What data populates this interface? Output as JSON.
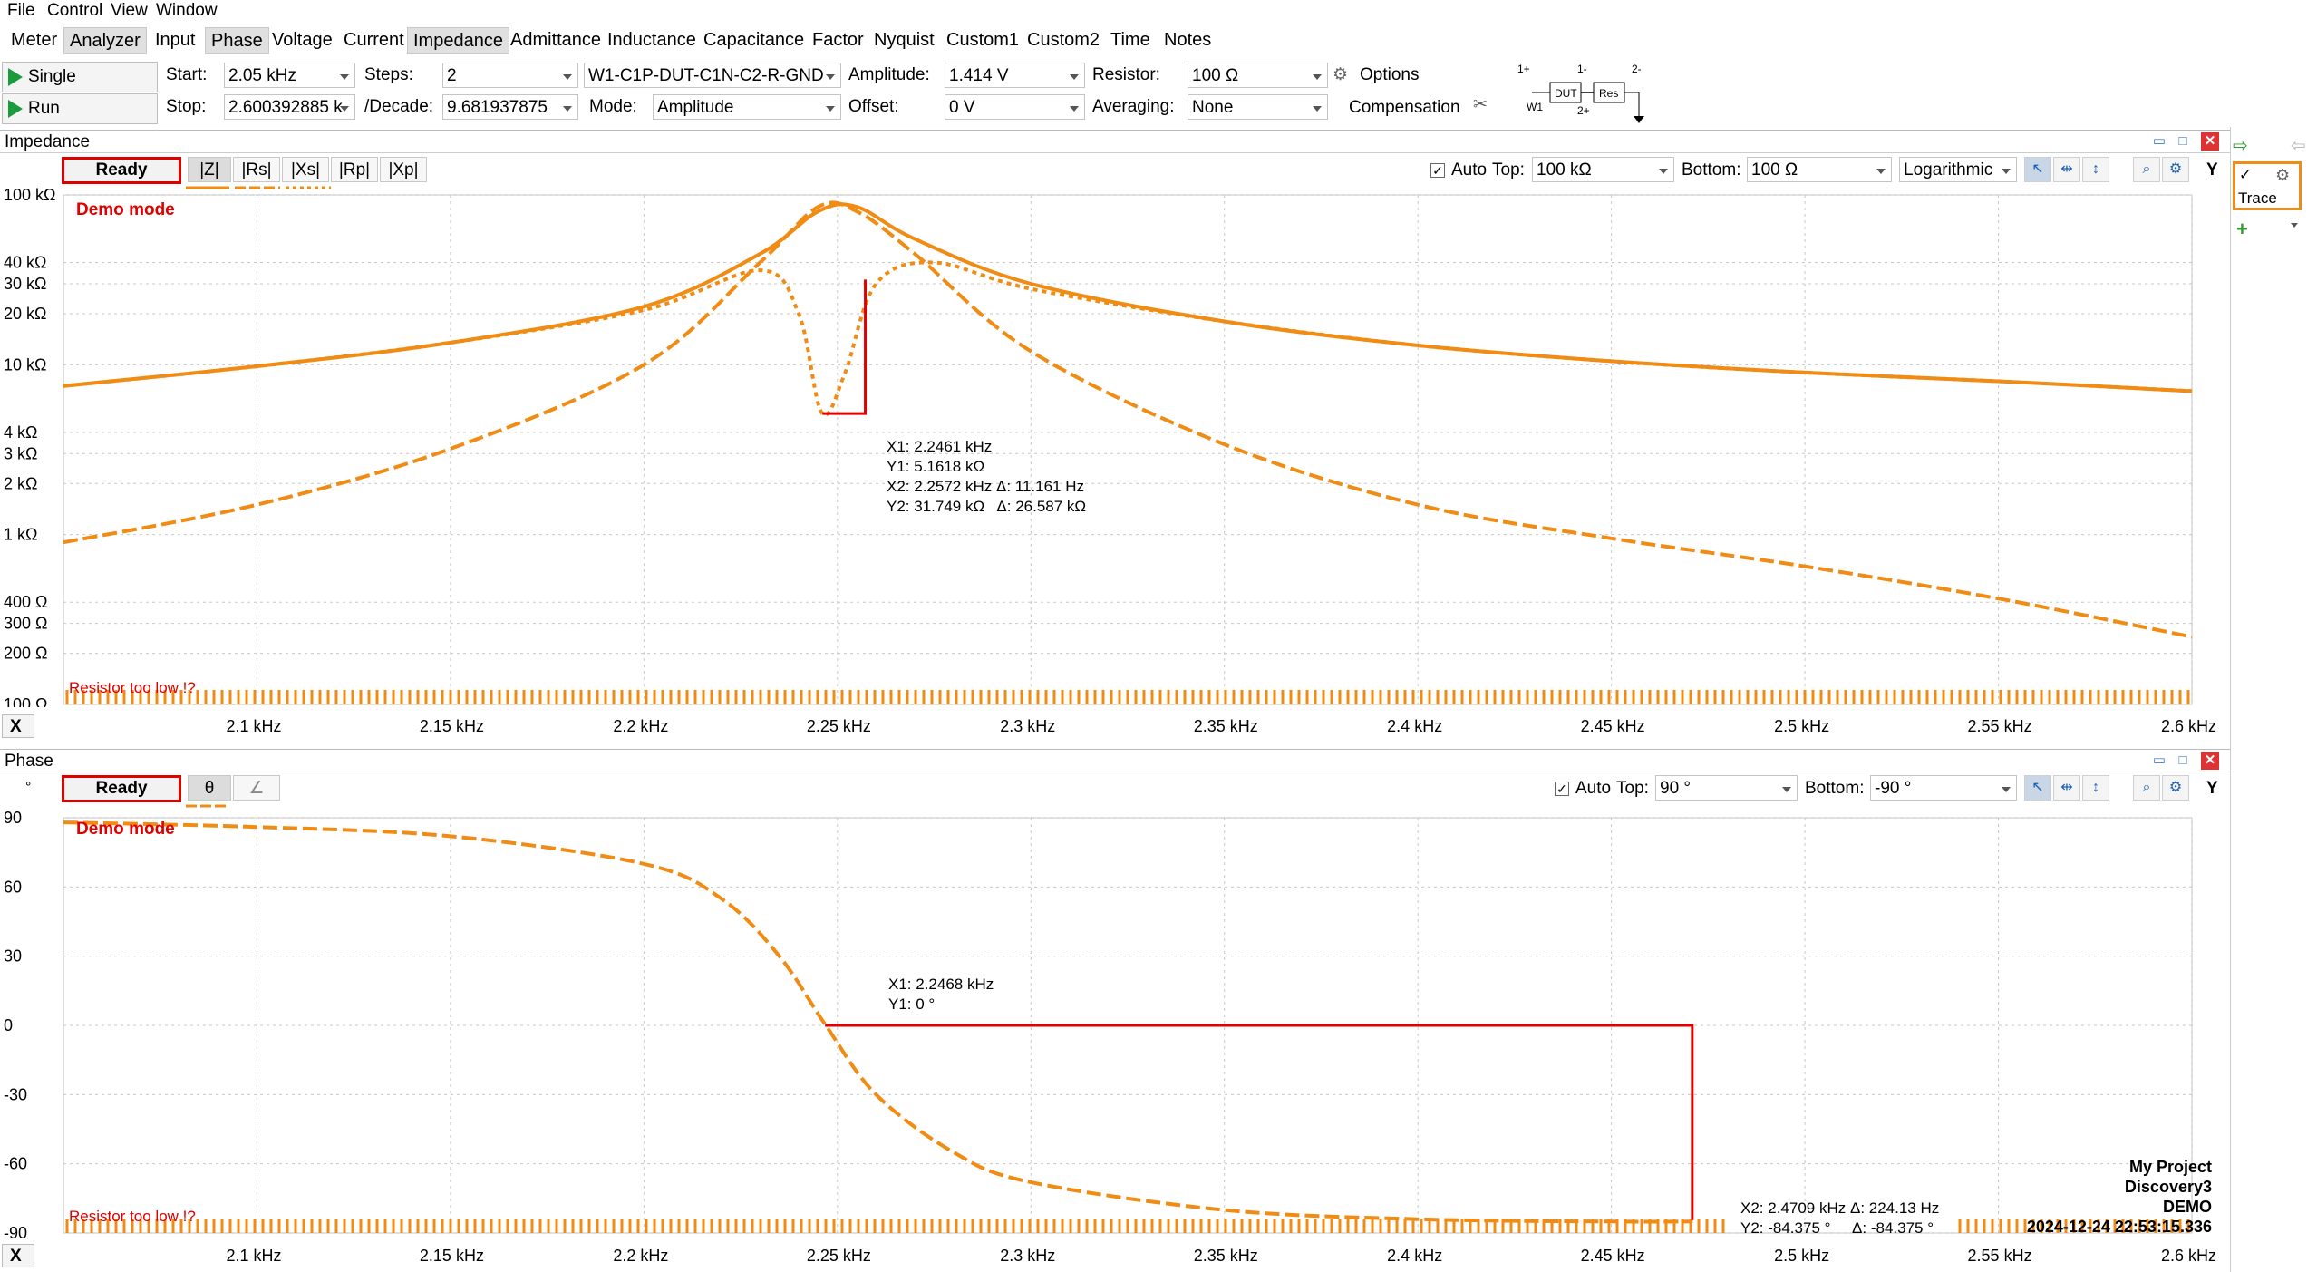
{
  "menu": [
    "File",
    "Control",
    "View",
    "Window"
  ],
  "tabs": [
    "Meter",
    "Analyzer",
    "Input",
    "Phase",
    "Voltage",
    "Current",
    "Impedance",
    "Admittance",
    "Inductance",
    "Capacitance",
    "Factor",
    "Nyquist",
    "Custom1",
    "Custom2",
    "Time",
    "Notes"
  ],
  "toolbar": {
    "single_label": "Single",
    "run_label": "Run",
    "start_label": "Start:",
    "start_value": "2.05 kHz",
    "stop_label": "Stop:",
    "stop_value": "2.600392885 k",
    "steps_label": "Steps:",
    "steps_value": "2",
    "decade_label": "/Decade:",
    "decade_value": "9.681937875",
    "config_value": "W1-C1P-DUT-C1N-C2-R-GND",
    "mode_label": "Mode:",
    "mode_value": "Amplitude",
    "amplitude_label": "Amplitude:",
    "amplitude_value": "1.414 V",
    "offset_label": "Offset:",
    "offset_value": "0 V",
    "resistor_label": "Resistor:",
    "resistor_value": "100 Ω",
    "averaging_label": "Averaging:",
    "averaging_value": "None",
    "options_label": "Options",
    "compensation_label": "Compensation",
    "diagram": {
      "p1": "1+",
      "n1": "1-",
      "n2": "2-",
      "p2": "2+",
      "w1": "W1",
      "dut": "DUT",
      "res": "Res"
    }
  },
  "side": {
    "trace_label": "Trace"
  },
  "impedance": {
    "title": "Impedance",
    "status": "Ready",
    "tabs": [
      "|Z|",
      "|Rs|",
      "|Xs|",
      "|Rp|",
      "|Xp|"
    ],
    "auto_label": "Auto",
    "top_label": "Top:",
    "top_value": "100 kΩ",
    "bottom_label": "Bottom:",
    "bottom_value": "100 Ω",
    "scale_value": "Logarithmic",
    "y_btn": "Y",
    "demo": "Demo mode",
    "warning": "Resistor too low !?",
    "y_ticks": [
      "100 kΩ",
      "40 kΩ",
      "30 kΩ",
      "20 kΩ",
      "10 kΩ",
      "4 kΩ",
      "3 kΩ",
      "2 kΩ",
      "1 kΩ",
      "400 Ω",
      "300 Ω",
      "200 Ω",
      "100 Ω"
    ],
    "cursor": {
      "x1": "X1: 2.2461 kHz",
      "y1": "Y1: 5.1618 kΩ",
      "x2": "X2: 2.2572 kHz Δ: 11.161 Hz",
      "y2": "Y2: 31.749 kΩ   Δ: 26.587 kΩ"
    }
  },
  "phase": {
    "title": "Phase",
    "status": "Ready",
    "unit": "°",
    "tabs": [
      "θ",
      "∠"
    ],
    "auto_label": "Auto",
    "top_label": "Top:",
    "top_value": "90 °",
    "bottom_label": "Bottom:",
    "bottom_value": "-90 °",
    "y_btn": "Y",
    "demo": "Demo mode",
    "warning": "Resistor too low !?",
    "y_ticks": [
      "90",
      "60",
      "30",
      "0",
      "-30",
      "-60",
      "-90"
    ],
    "cursor1": {
      "x1": "X1: 2.2468 kHz",
      "y1": "Y1: 0 °"
    },
    "cursor2": {
      "x2": "X2: 2.4709 kHz Δ: 224.13 Hz",
      "y2": "Y2: -84.375 °     Δ: -84.375 °"
    }
  },
  "x_axis_label": "X",
  "x_ticks": [
    "2.1 kHz",
    "2.15 kHz",
    "2.2 kHz",
    "2.25 kHz",
    "2.3 kHz",
    "2.35 kHz",
    "2.4 kHz",
    "2.45 kHz",
    "2.5 kHz",
    "2.55 kHz",
    "2.6 kHz"
  ],
  "stamp": {
    "project": "My Project",
    "device": "Discovery3",
    "demo": "DEMO",
    "datetime": "2024-12-24 22:53:15.336"
  },
  "colors": {
    "trace": "#f08c14",
    "cursor": "#e00000",
    "grid": "#c8c8c8"
  },
  "chart_data": [
    {
      "type": "line",
      "title": "Impedance",
      "xlabel": "",
      "ylabel": "",
      "xlim": [
        2050,
        2600
      ],
      "ylim": [
        100,
        100000
      ],
      "yscale": "log",
      "grid": true,
      "series": [
        {
          "name": "|Z|",
          "style": "solid",
          "x": [
            2050,
            2100,
            2150,
            2200,
            2230,
            2245,
            2255,
            2270,
            2300,
            2350,
            2400,
            2450,
            2500,
            2550,
            2600
          ],
          "values": [
            7500,
            9800,
            13500,
            22000,
            45000,
            80000,
            85000,
            55000,
            30000,
            18000,
            13000,
            10500,
            9000,
            8000,
            7000
          ]
        },
        {
          "name": "|Rs|",
          "style": "dashed",
          "x": [
            2050,
            2100,
            2150,
            2200,
            2230,
            2245,
            2255,
            2270,
            2300,
            2350,
            2400,
            2450,
            2500,
            2550,
            2600
          ],
          "values": [
            900,
            1500,
            3200,
            10000,
            40000,
            85000,
            80000,
            45000,
            12000,
            3400,
            1500,
            950,
            650,
            420,
            250
          ]
        },
        {
          "name": "|Xs|",
          "style": "dotted",
          "x": [
            2050,
            2100,
            2150,
            2200,
            2230,
            2240,
            2246,
            2252,
            2260,
            2275,
            2300,
            2350,
            2400,
            2450,
            2500,
            2550,
            2600
          ],
          "values": [
            7500,
            9800,
            13500,
            21000,
            36000,
            20000,
            5200,
            9000,
            30000,
            40000,
            28000,
            18000,
            13000,
            10500,
            9000,
            8000,
            7000
          ]
        }
      ]
    },
    {
      "type": "line",
      "title": "Phase",
      "xlabel": "",
      "ylabel": "°",
      "xlim": [
        2050,
        2600
      ],
      "ylim": [
        -90,
        90
      ],
      "grid": true,
      "series": [
        {
          "name": "θ",
          "style": "dashed",
          "x": [
            2050,
            2100,
            2150,
            2200,
            2220,
            2235,
            2247,
            2260,
            2280,
            2300,
            2350,
            2400,
            2450,
            2471
          ],
          "values": [
            88,
            86,
            82,
            70,
            55,
            30,
            0,
            -30,
            -55,
            -68,
            -80,
            -84,
            -85,
            -85
          ]
        }
      ]
    }
  ]
}
